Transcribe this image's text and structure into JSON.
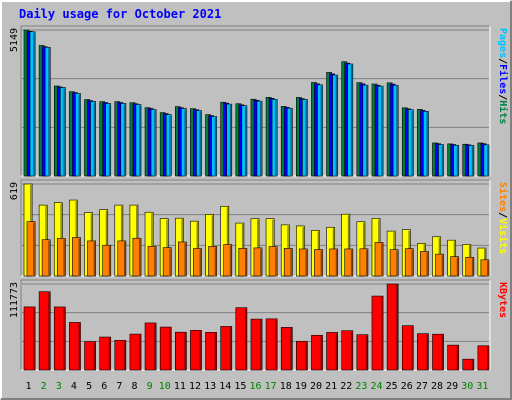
{
  "chart_data": {
    "type": "bar",
    "title": "Daily usage for October 2021",
    "x": [
      "1",
      "2",
      "3",
      "4",
      "5",
      "6",
      "7",
      "8",
      "9",
      "10",
      "11",
      "12",
      "13",
      "14",
      "15",
      "16",
      "17",
      "18",
      "19",
      "20",
      "21",
      "22",
      "23",
      "24",
      "25",
      "26",
      "27",
      "28",
      "29",
      "30",
      "31"
    ],
    "weekend_days": [
      "2",
      "3",
      "9",
      "10",
      "16",
      "17",
      "23",
      "24",
      "30",
      "31"
    ],
    "colors": {
      "background": "#C0C0C0",
      "panel": "#C0C0C0",
      "gridline": "#808080",
      "title": "#0000FF",
      "weekday_label": "#000000",
      "weekend_label": "#008000",
      "hits": "#008040",
      "files": "#0000FF",
      "pages": "#00C0FF",
      "visits": "#FFFF00",
      "sites": "#FF8000",
      "kbytes": "#FF0000"
    },
    "panels": [
      {
        "id": "hits-files-pages",
        "max_label": "5149",
        "ymax": 5149,
        "legend": [
          {
            "text": "Hits",
            "color": "#008040"
          },
          {
            "text": "/",
            "color": "#000000"
          },
          {
            "text": "Files",
            "color": "#0000FF"
          },
          {
            "text": "/",
            "color": "#000000"
          },
          {
            "text": "Pages",
            "color": "#00C0FF"
          }
        ],
        "series": [
          {
            "name": "Hits",
            "color": "#008040",
            "values": [
              5149,
              4603,
              3175,
              2973,
              2696,
              2621,
              2623,
              2584,
              2411,
              2234,
              2447,
              2376,
              2164,
              2602,
              2549,
              2708,
              2775,
              2455,
              2771,
              3298,
              3652,
              4031,
              3291,
              3245,
              3285,
              2405,
              2348,
              1165,
              1132,
              1121,
              1165
            ]
          },
          {
            "name": "Files",
            "color": "#0000FF",
            "values": [
              5100,
              4560,
              3140,
              2940,
              2660,
              2590,
              2590,
              2550,
              2380,
              2200,
              2410,
              2340,
              2130,
              2570,
              2510,
              2670,
              2740,
              2420,
              2730,
              3250,
              3600,
              3980,
              3250,
              3200,
              3240,
              2370,
              2310,
              1140,
              1110,
              1100,
              1140
            ]
          },
          {
            "name": "Pages",
            "color": "#00C0FF",
            "values": [
              5086,
              4540,
              3120,
              2910,
              2630,
              2555,
              2560,
              2520,
              2345,
              2165,
              2380,
              2310,
              2100,
              2535,
              2480,
              2640,
              2705,
              2390,
              2700,
              3215,
              3560,
              3950,
              3205,
              3170,
              3200,
              2340,
              2280,
              1110,
              1085,
              1080,
              1100
            ]
          }
        ]
      },
      {
        "id": "visits-sites",
        "max_label": "619",
        "ymax": 619,
        "legend": [
          {
            "text": "Visits",
            "color": "#FFFF00"
          },
          {
            "text": "/",
            "color": "#000000"
          },
          {
            "text": "Sites",
            "color": "#FF8000"
          }
        ],
        "series": [
          {
            "name": "Visits",
            "color": "#FFFF00",
            "values": [
              619,
              477,
              494,
              511,
              427,
              447,
              477,
              477,
              429,
              386,
              389,
              369,
              414,
              469,
              356,
              386,
              386,
              344,
              337,
              307,
              328,
              416,
              365,
              387,
              302,
              312,
              219,
              264,
              241,
              212,
              188
            ]
          },
          {
            "name": "Sites",
            "color": "#FF8000",
            "values": [
              366,
              244,
              253,
              259,
              236,
              207,
              236,
              254,
              200,
              191,
              229,
              185,
              199,
              212,
              186,
              189,
              198,
              186,
              182,
              178,
              182,
              182,
              183,
              226,
              177,
              184,
              165,
              147,
              130,
              126,
              109
            ]
          }
        ]
      },
      {
        "id": "kbytes",
        "max_label": "111773",
        "ymax": 111773,
        "legend": [
          {
            "text": "KBytes",
            "color": "#FF0000"
          }
        ],
        "series": [
          {
            "name": "KBytes",
            "color": "#FF0000",
            "values": [
              81990,
              101790,
              81940,
              61830,
              36930,
              42840,
              38610,
              46660,
              61170,
              55790,
              49170,
              51530,
              48950,
              56600,
              80990,
              66160,
              66490,
              55410,
              37160,
              45130,
              48820,
              51050,
              45880,
              96100,
              111773,
              57640,
              47240,
              46530,
              32350,
              14050,
              31510
            ]
          }
        ]
      }
    ],
    "grid": true,
    "legend_placement": "right-vertical"
  }
}
